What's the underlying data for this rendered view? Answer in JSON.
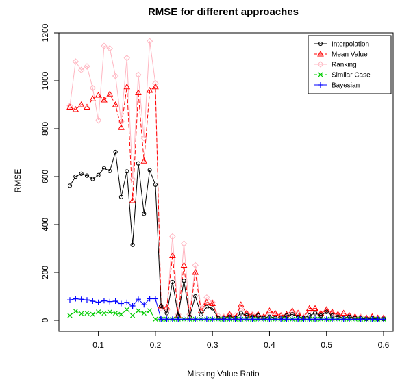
{
  "chart_data": {
    "type": "line",
    "title": "RMSE for different approaches",
    "xlabel": "Missing Value Ratio",
    "ylabel": "RMSE",
    "xlim": [
      0.05,
      0.6
    ],
    "ylim": [
      0,
      1200
    ],
    "xticks": [
      0.1,
      0.2,
      0.3,
      0.4,
      0.5,
      0.6
    ],
    "xtick_labels": [
      "0.1",
      "0.2",
      "0.3",
      "0.4",
      "0.5",
      "0.6"
    ],
    "yticks": [
      0,
      200,
      400,
      600,
      800,
      1000,
      1200
    ],
    "ytick_labels": [
      "0",
      "200",
      "400",
      "600",
      "800",
      "1000",
      "1200"
    ],
    "legend_position": "top-right",
    "x": [
      0.05,
      0.06,
      0.07,
      0.08,
      0.09,
      0.1,
      0.11,
      0.12,
      0.13,
      0.14,
      0.15,
      0.16,
      0.17,
      0.18,
      0.19,
      0.2,
      0.21,
      0.22,
      0.23,
      0.24,
      0.25,
      0.26,
      0.27,
      0.28,
      0.29,
      0.3,
      0.31,
      0.32,
      0.33,
      0.34,
      0.35,
      0.36,
      0.37,
      0.38,
      0.39,
      0.4,
      0.41,
      0.42,
      0.43,
      0.44,
      0.45,
      0.46,
      0.47,
      0.48,
      0.49,
      0.5,
      0.51,
      0.52,
      0.53,
      0.54,
      0.55,
      0.56,
      0.57,
      0.58,
      0.59,
      0.6
    ],
    "series": [
      {
        "name": "Interpolation",
        "color": "#000000",
        "marker": "circle",
        "dash": "solid",
        "values": [
          562,
          600,
          612,
          604,
          590,
          606,
          635,
          623,
          703,
          515,
          622,
          315,
          655,
          445,
          627,
          566,
          60,
          30,
          160,
          20,
          165,
          15,
          100,
          25,
          55,
          50,
          10,
          10,
          15,
          10,
          30,
          20,
          15,
          20,
          10,
          15,
          10,
          10,
          20,
          25,
          15,
          10,
          20,
          30,
          20,
          35,
          20,
          15,
          10,
          15,
          10,
          10,
          5,
          10,
          5,
          5
        ]
      },
      {
        "name": "Mean Value",
        "color": "#ff0000",
        "marker": "triangle",
        "dash": "dash",
        "values": [
          890,
          880,
          900,
          890,
          925,
          940,
          920,
          945,
          900,
          805,
          975,
          500,
          950,
          665,
          960,
          975,
          60,
          55,
          270,
          20,
          230,
          15,
          200,
          40,
          75,
          70,
          10,
          10,
          25,
          10,
          65,
          30,
          20,
          25,
          15,
          40,
          30,
          20,
          25,
          40,
          30,
          10,
          50,
          50,
          30,
          45,
          35,
          25,
          30,
          20,
          15,
          10,
          10,
          15,
          10,
          10
        ]
      },
      {
        "name": "Ranking",
        "color": "#ffb6c1",
        "marker": "diamond",
        "dash": "solid",
        "values": [
          895,
          1080,
          1045,
          1060,
          970,
          835,
          1145,
          1135,
          1020,
          830,
          1095,
          590,
          1025,
          760,
          1165,
          990,
          50,
          40,
          350,
          25,
          320,
          25,
          230,
          50,
          95,
          75,
          20,
          15,
          25,
          20,
          50,
          30,
          25,
          20,
          15,
          30,
          25,
          20,
          20,
          35,
          30,
          15,
          40,
          40,
          25,
          40,
          30,
          25,
          20,
          20,
          15,
          15,
          10,
          15,
          10,
          10
        ]
      },
      {
        "name": "Similar Case",
        "color": "#00cc00",
        "marker": "x",
        "dash": "dash",
        "values": [
          20,
          38,
          28,
          30,
          25,
          35,
          30,
          35,
          30,
          25,
          45,
          20,
          40,
          30,
          40,
          5,
          5,
          5,
          5,
          5,
          5,
          5,
          5,
          5,
          5,
          5,
          5,
          5,
          5,
          5,
          5,
          5,
          5,
          5,
          5,
          5,
          5,
          5,
          5,
          5,
          5,
          5,
          5,
          5,
          5,
          5,
          5,
          5,
          5,
          5,
          5,
          5,
          5,
          5,
          5,
          5
        ]
      },
      {
        "name": "Bayesian",
        "color": "#0000ff",
        "marker": "plus",
        "dash": "solid",
        "values": [
          85,
          90,
          88,
          85,
          80,
          75,
          82,
          78,
          80,
          70,
          75,
          60,
          88,
          65,
          90,
          90,
          5,
          5,
          5,
          5,
          5,
          5,
          5,
          5,
          5,
          5,
          5,
          5,
          5,
          5,
          5,
          5,
          5,
          5,
          5,
          5,
          5,
          5,
          5,
          5,
          5,
          5,
          5,
          5,
          5,
          5,
          5,
          5,
          5,
          5,
          5,
          5,
          5,
          5,
          5,
          5
        ]
      }
    ]
  }
}
